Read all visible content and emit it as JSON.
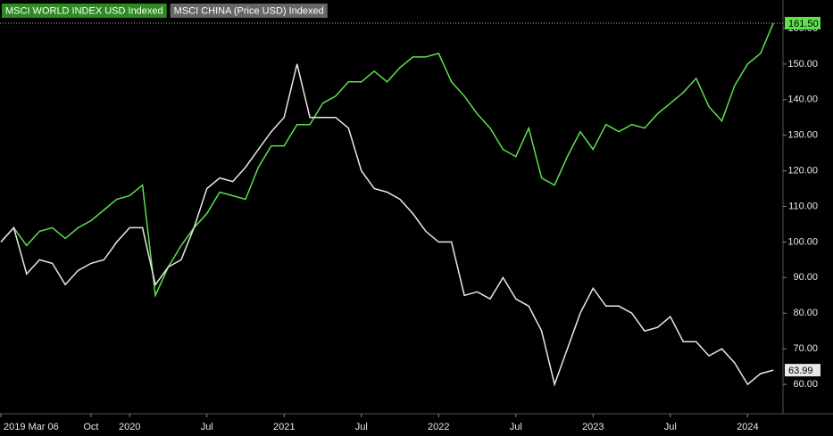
{
  "chart_data": {
    "type": "line",
    "x": [
      "2019-03",
      "2019-04",
      "2019-05",
      "2019-06",
      "2019-07",
      "2019-08",
      "2019-09",
      "2019-10",
      "2019-11",
      "2019-12",
      "2020-01",
      "2020-02",
      "2020-03",
      "2020-04",
      "2020-05",
      "2020-06",
      "2020-07",
      "2020-08",
      "2020-09",
      "2020-10",
      "2020-11",
      "2020-12",
      "2021-01",
      "2021-02",
      "2021-03",
      "2021-04",
      "2021-05",
      "2021-06",
      "2021-07",
      "2021-08",
      "2021-09",
      "2021-10",
      "2021-11",
      "2021-12",
      "2022-01",
      "2022-02",
      "2022-03",
      "2022-04",
      "2022-05",
      "2022-06",
      "2022-07",
      "2022-08",
      "2022-09",
      "2022-10",
      "2022-11",
      "2022-12",
      "2023-01",
      "2023-02",
      "2023-03",
      "2023-04",
      "2023-05",
      "2023-06",
      "2023-07",
      "2023-08",
      "2023-09",
      "2023-10",
      "2023-11",
      "2023-12",
      "2024-01",
      "2024-02",
      "2024-03"
    ],
    "series": [
      {
        "name": "MSCI WORLD INDEX USD Indexed",
        "color": "#5ee04f",
        "values": [
          100,
          104,
          99,
          103,
          104,
          101,
          104,
          106,
          109,
          112,
          113,
          116,
          85,
          93,
          99,
          104,
          108,
          114,
          113,
          112,
          121,
          127,
          127,
          133,
          133,
          139,
          141,
          145,
          145,
          148,
          145,
          149,
          152,
          152,
          153,
          145,
          141,
          136,
          132,
          126,
          124,
          132,
          118,
          116,
          124,
          131,
          126,
          133,
          131,
          133,
          132,
          136,
          139,
          142,
          146,
          138,
          134,
          144,
          150,
          153,
          161.5
        ],
        "value_labels": [
          null,
          null,
          null,
          null,
          null,
          null,
          null,
          null,
          null,
          null,
          null,
          null,
          null,
          null,
          null,
          null,
          null,
          null,
          null,
          null,
          null,
          null,
          null,
          null,
          null,
          null,
          null,
          null,
          null,
          null,
          null,
          null,
          null,
          null,
          null,
          null,
          null,
          null,
          null,
          null,
          null,
          null,
          null,
          null,
          null,
          null,
          null,
          null,
          null,
          null,
          null,
          null,
          null,
          null,
          null,
          null,
          null,
          null,
          null,
          null,
          "161.50"
        ]
      },
      {
        "name": "MSCI CHINA (Price USD) Indexed",
        "color": "#e8e8e8",
        "values": [
          100,
          104,
          91,
          95,
          94,
          88,
          92,
          94,
          95,
          100,
          104,
          104,
          88,
          93,
          95,
          104,
          115,
          118,
          117,
          121,
          126,
          131,
          135,
          150,
          135,
          135,
          135,
          132,
          120,
          115,
          114,
          112,
          108,
          103,
          100,
          100,
          85,
          86,
          84,
          90,
          84,
          82,
          75,
          60,
          70,
          80,
          87,
          82,
          82,
          80,
          75,
          76,
          79,
          72,
          72,
          68,
          70,
          66,
          60,
          63,
          63.99
        ],
        "value_labels": [
          null,
          null,
          null,
          null,
          null,
          null,
          null,
          null,
          null,
          null,
          null,
          null,
          null,
          null,
          null,
          null,
          null,
          null,
          null,
          null,
          null,
          null,
          null,
          null,
          null,
          null,
          null,
          null,
          null,
          null,
          null,
          null,
          null,
          null,
          null,
          null,
          null,
          null,
          null,
          null,
          null,
          null,
          null,
          null,
          null,
          null,
          null,
          null,
          null,
          null,
          null,
          null,
          null,
          null,
          null,
          null,
          null,
          null,
          null,
          null,
          "63.99"
        ]
      }
    ],
    "ylim": [
      52,
      168
    ],
    "yticks": [
      {
        "value": 60,
        "label": "60.00"
      },
      {
        "value": 70,
        "label": "70.00"
      },
      {
        "value": 80,
        "label": "80.00"
      },
      {
        "value": 90,
        "label": "90.00"
      },
      {
        "value": 100,
        "label": "100.00"
      },
      {
        "value": 110,
        "label": "110.00"
      },
      {
        "value": 120,
        "label": "120.00"
      },
      {
        "value": 130,
        "label": "130.00"
      },
      {
        "value": 140,
        "label": "140.00"
      },
      {
        "value": 150,
        "label": "150.00"
      },
      {
        "value": 160,
        "label": "160.00"
      }
    ],
    "xticks": [
      {
        "value": "2019-03",
        "label": "2019 Mar 06"
      },
      {
        "value": "2019-10",
        "label": "Oct"
      },
      {
        "value": "2020-01",
        "label": "2020"
      },
      {
        "value": "2020-07",
        "label": "Jul"
      },
      {
        "value": "2021-01",
        "label": "2021"
      },
      {
        "value": "2021-07",
        "label": "Jul"
      },
      {
        "value": "2022-01",
        "label": "2022"
      },
      {
        "value": "2022-07",
        "label": "Jul"
      },
      {
        "value": "2023-01",
        "label": "2023"
      },
      {
        "value": "2023-07",
        "label": "Jul"
      },
      {
        "value": "2024-01",
        "label": "2024"
      }
    ],
    "grid": false
  }
}
